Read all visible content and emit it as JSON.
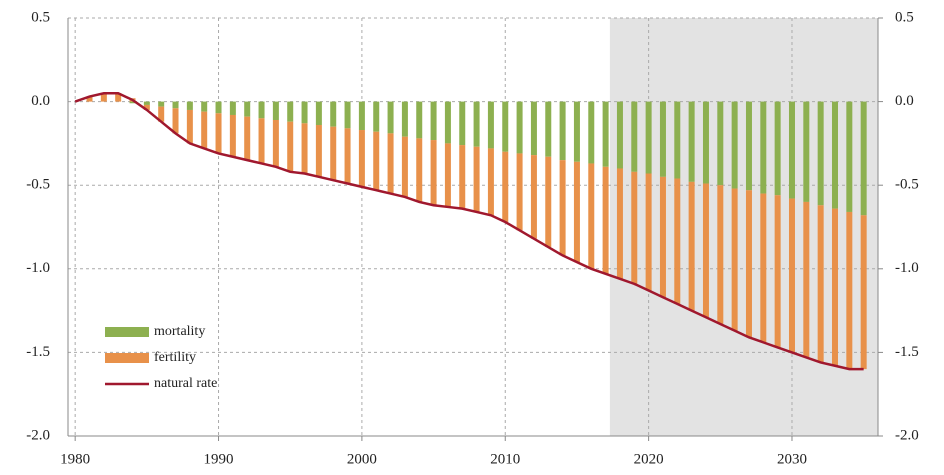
{
  "chart_data": {
    "type": "bar-line",
    "x": [
      1980,
      1981,
      1982,
      1983,
      1984,
      1985,
      1986,
      1987,
      1988,
      1989,
      1990,
      1991,
      1992,
      1993,
      1994,
      1995,
      1996,
      1997,
      1998,
      1999,
      2000,
      2001,
      2002,
      2003,
      2004,
      2005,
      2006,
      2007,
      2008,
      2009,
      2010,
      2011,
      2012,
      2013,
      2014,
      2015,
      2016,
      2017,
      2018,
      2019,
      2020,
      2021,
      2022,
      2023,
      2024,
      2025,
      2026,
      2027,
      2028,
      2029,
      2030,
      2031,
      2032,
      2033,
      2034,
      2035
    ],
    "series": [
      {
        "name": "mortality",
        "type": "bar",
        "color": "#8db050",
        "values": [
          0,
          0,
          0,
          0,
          -0.01,
          -0.02,
          -0.03,
          -0.04,
          -0.05,
          -0.06,
          -0.07,
          -0.08,
          -0.09,
          -0.1,
          -0.11,
          -0.12,
          -0.13,
          -0.14,
          -0.15,
          -0.16,
          -0.17,
          -0.18,
          -0.19,
          -0.21,
          -0.22,
          -0.23,
          -0.25,
          -0.26,
          -0.27,
          -0.28,
          -0.3,
          -0.31,
          -0.32,
          -0.33,
          -0.35,
          -0.36,
          -0.37,
          -0.39,
          -0.4,
          -0.42,
          -0.43,
          -0.45,
          -0.46,
          -0.48,
          -0.49,
          -0.5,
          -0.52,
          -0.53,
          -0.55,
          -0.56,
          -0.58,
          -0.6,
          -0.62,
          -0.64,
          -0.66,
          -0.68
        ]
      },
      {
        "name": "fertility",
        "type": "bar",
        "color": "#e8914a",
        "values": [
          0,
          0.03,
          0.05,
          0.05,
          0.02,
          -0.03,
          -0.09,
          -0.15,
          -0.2,
          -0.22,
          -0.24,
          -0.25,
          -0.26,
          -0.27,
          -0.28,
          -0.3,
          -0.3,
          -0.31,
          -0.32,
          -0.33,
          -0.34,
          -0.35,
          -0.36,
          -0.36,
          -0.38,
          -0.39,
          -0.38,
          -0.38,
          -0.39,
          -0.4,
          -0.42,
          -0.46,
          -0.5,
          -0.54,
          -0.57,
          -0.6,
          -0.63,
          -0.64,
          -0.66,
          -0.67,
          -0.7,
          -0.72,
          -0.75,
          -0.77,
          -0.8,
          -0.83,
          -0.85,
          -0.88,
          -0.89,
          -0.91,
          -0.92,
          -0.93,
          -0.94,
          -0.94,
          -0.94,
          -0.92
        ]
      },
      {
        "name": "natural rate",
        "type": "line",
        "color": "#a0182e",
        "values": [
          0,
          0.03,
          0.05,
          0.05,
          0.01,
          -0.05,
          -0.12,
          -0.19,
          -0.25,
          -0.28,
          -0.31,
          -0.33,
          -0.35,
          -0.37,
          -0.39,
          -0.42,
          -0.43,
          -0.45,
          -0.47,
          -0.49,
          -0.51,
          -0.53,
          -0.55,
          -0.57,
          -0.6,
          -0.62,
          -0.63,
          -0.64,
          -0.66,
          -0.68,
          -0.72,
          -0.77,
          -0.82,
          -0.87,
          -0.92,
          -0.96,
          -1,
          -1.03,
          -1.06,
          -1.09,
          -1.13,
          -1.17,
          -1.21,
          -1.25,
          -1.29,
          -1.33,
          -1.37,
          -1.41,
          -1.44,
          -1.47,
          -1.5,
          -1.53,
          -1.56,
          -1.58,
          -1.6,
          -1.6
        ]
      }
    ],
    "xlim": [
      1979.5,
      2036
    ],
    "xticks": [
      1980,
      1990,
      2000,
      2010,
      2020,
      2030
    ],
    "ylim": [
      -2,
      0.5
    ],
    "yticks": [
      0.5,
      {
        "value": 0,
        "label": "0.0"
      },
      -0.5,
      {
        "value": -1,
        "label": "-1.0"
      },
      -1.5,
      {
        "value": -2,
        "label": "-2.0"
      }
    ],
    "y2lim": [
      -2,
      0.5
    ],
    "y2ticks": [
      0.5,
      {
        "value": 0,
        "label": "0.0"
      },
      -0.5,
      {
        "value": -1,
        "label": "-1.0"
      },
      -1.5,
      {
        "value": -2,
        "label": "-2.0"
      }
    ],
    "shaded_xlim": [
      2017.3,
      2036
    ],
    "grid": true,
    "legend": "lower left"
  }
}
